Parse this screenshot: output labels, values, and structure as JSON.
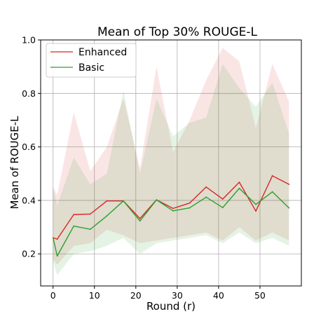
{
  "chart_data": {
    "type": "line",
    "title": "Mean of Top 30% ROUGE-L",
    "xlabel": "Round (r)",
    "ylabel": "Mean of ROUGE-L",
    "xlim": [
      -3,
      60
    ],
    "ylim": [
      0.08,
      1.0
    ],
    "xticks": [
      0,
      10,
      20,
      30,
      40,
      50
    ],
    "yticks": [
      0.2,
      0.4,
      0.6,
      0.8,
      1.0
    ],
    "ytick_labels": [
      "0.2",
      "0.4",
      "0.6",
      "0.8",
      "1.0"
    ],
    "grid": true,
    "legend": "top-left",
    "x": [
      0,
      1,
      5,
      9,
      13,
      17,
      21,
      25,
      29,
      33,
      37,
      41,
      45,
      49,
      53,
      57
    ],
    "series": [
      {
        "name": "Enhanced",
        "color": "#d62728",
        "values": [
          0.26,
          0.255,
          0.347,
          0.349,
          0.398,
          0.398,
          0.332,
          0.402,
          0.37,
          0.39,
          0.45,
          0.405,
          0.468,
          0.36,
          0.492,
          0.46
        ],
        "lower": [
          0.18,
          0.16,
          0.23,
          0.24,
          0.29,
          0.27,
          0.24,
          0.25,
          0.26,
          0.27,
          0.28,
          0.25,
          0.3,
          0.25,
          0.28,
          0.25
        ],
        "upper": [
          0.45,
          0.42,
          0.73,
          0.51,
          0.6,
          0.78,
          0.52,
          0.9,
          0.58,
          0.7,
          0.85,
          0.97,
          0.92,
          0.67,
          0.91,
          0.77
        ]
      },
      {
        "name": "Basic",
        "color": "#2ca02c",
        "values": [
          0.26,
          0.192,
          0.304,
          0.292,
          0.342,
          0.398,
          0.323,
          0.402,
          0.361,
          0.372,
          0.412,
          0.373,
          0.445,
          0.385,
          0.432,
          0.372
        ],
        "lower": [
          0.17,
          0.12,
          0.2,
          0.21,
          0.23,
          0.26,
          0.2,
          0.24,
          0.25,
          0.26,
          0.27,
          0.24,
          0.28,
          0.24,
          0.26,
          0.23
        ],
        "upper": [
          0.45,
          0.38,
          0.56,
          0.46,
          0.5,
          0.81,
          0.5,
          0.78,
          0.64,
          0.69,
          0.71,
          0.91,
          0.82,
          0.75,
          0.84,
          0.65
        ]
      }
    ]
  }
}
